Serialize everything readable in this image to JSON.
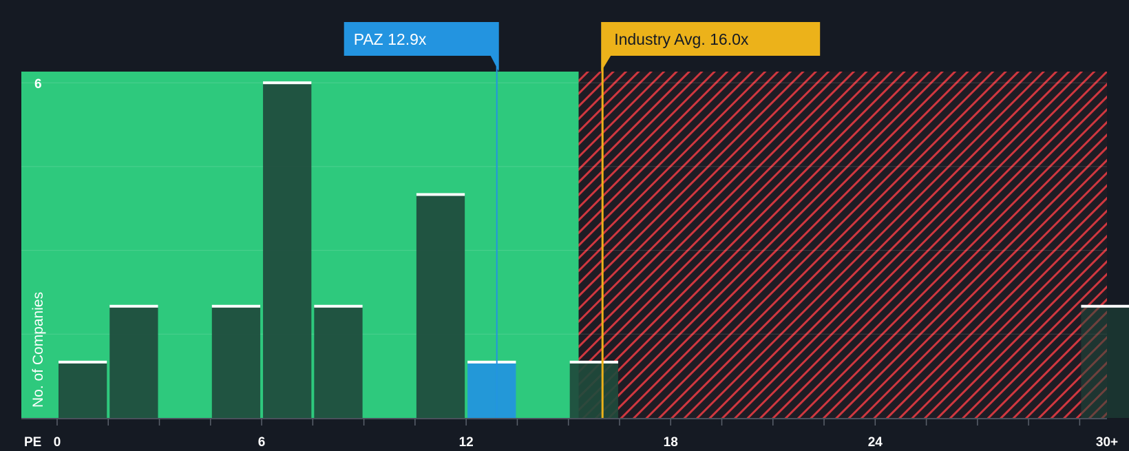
{
  "chart_data": {
    "type": "bar",
    "x_axis_label": "PE",
    "y_axis_label": "No. of Companies",
    "y_max_tick_label": "6",
    "x_ticks": [
      "0",
      "6",
      "12",
      "18",
      "24",
      "30+"
    ],
    "x_tick_values": [
      0,
      6,
      12,
      18,
      24,
      30.8
    ],
    "xlim": [
      -1.05,
      30.8
    ],
    "ylim": [
      0,
      6.2
    ],
    "bin_width": 1.5,
    "bins": [
      {
        "x_start": 0,
        "count": 1
      },
      {
        "x_start": 1.5,
        "count": 2
      },
      {
        "x_start": 4.5,
        "count": 2
      },
      {
        "x_start": 6,
        "count": 6
      },
      {
        "x_start": 7.5,
        "count": 2
      },
      {
        "x_start": 10.5,
        "count": 4
      },
      {
        "x_start": 12,
        "count": 1,
        "highlight": true
      },
      {
        "x_start": 15,
        "count": 1
      },
      {
        "x_start": 30,
        "count": 2
      }
    ],
    "fair_zone_end": 15.3,
    "company": {
      "label": "PAZ 12.9x",
      "value": 12.9
    },
    "industry": {
      "label": "Industry Avg. 16.0x",
      "value": 16.0
    },
    "colors": {
      "background": "#151a23",
      "fair_zone": "#2ec97d",
      "bar": "#1f4a3c",
      "bar_cap": "#ffffff",
      "highlight_bar": "#2394e0",
      "overvalued_stripe": "#d0373f",
      "overvalued_bg": "#1e1c24",
      "company_badge": "#2394e0",
      "industry_badge": "#ecb21a",
      "axis_text": "#ffffff"
    }
  }
}
